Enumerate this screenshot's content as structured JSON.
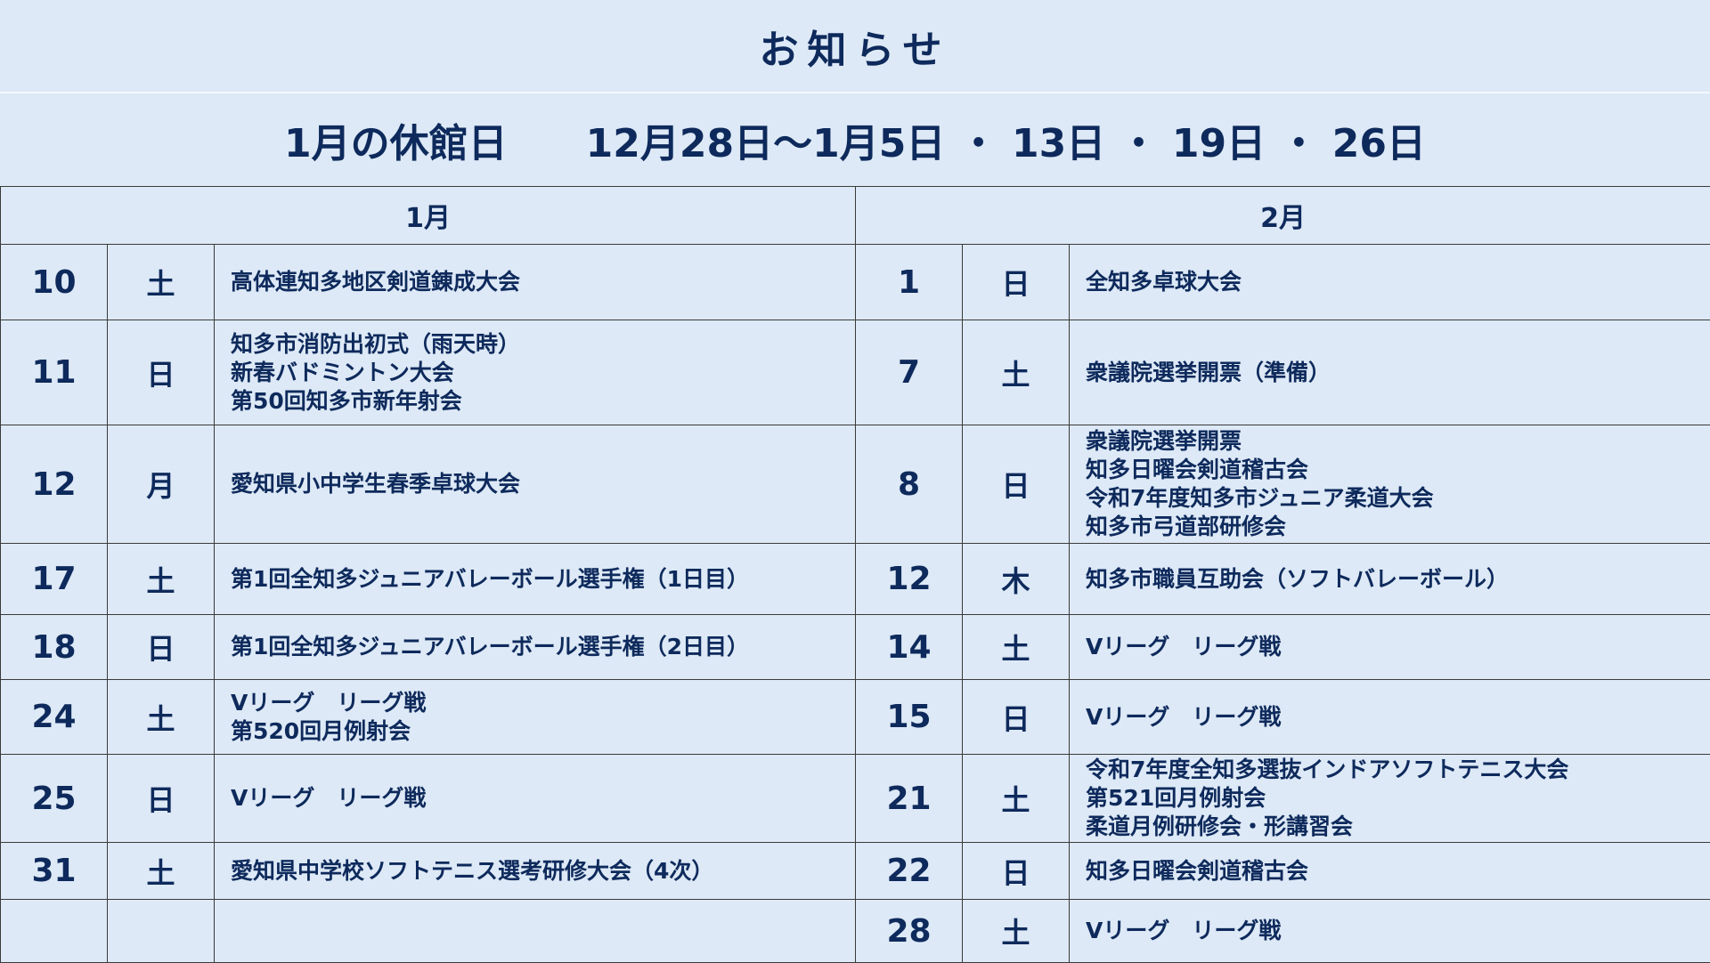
{
  "header": {
    "title": "お知らせ"
  },
  "closed_days": {
    "text": "1月の休館日　　12月28日～1月5日 ・ 13日 ・ 19日 ・ 26日"
  },
  "months": {
    "left": "1月",
    "right": "2月"
  },
  "rows": [
    {
      "left": {
        "day": "10",
        "dow": "土",
        "events": [
          "高体連知多地区剣道錬成大会"
        ]
      },
      "right": {
        "day": "1",
        "dow": "日",
        "events": [
          "全知多卓球大会"
        ]
      }
    },
    {
      "left": {
        "day": "11",
        "dow": "日",
        "events": [
          "知多市消防出初式（雨天時）",
          "新春バドミントン大会",
          "第50回知多市新年射会"
        ]
      },
      "right": {
        "day": "7",
        "dow": "土",
        "events": [
          "衆議院選挙開票（準備）"
        ]
      }
    },
    {
      "left": {
        "day": "12",
        "dow": "月",
        "events": [
          "愛知県小中学生春季卓球大会"
        ]
      },
      "right": {
        "day": "8",
        "dow": "日",
        "events": [
          "衆議院選挙開票",
          "知多日曜会剣道稽古会",
          "令和7年度知多市ジュニア柔道大会",
          "知多市弓道部研修会"
        ]
      }
    },
    {
      "left": {
        "day": "17",
        "dow": "土",
        "events": [
          "第1回全知多ジュニアバレーボール選手権（1日目）"
        ]
      },
      "right": {
        "day": "12",
        "dow": "木",
        "events": [
          "知多市職員互助会（ソフトバレーボール）"
        ]
      }
    },
    {
      "left": {
        "day": "18",
        "dow": "日",
        "events": [
          "第1回全知多ジュニアバレーボール選手権（2日目）"
        ]
      },
      "right": {
        "day": "14",
        "dow": "土",
        "events": [
          "Vリーグ　リーグ戦"
        ]
      }
    },
    {
      "left": {
        "day": "24",
        "dow": "土",
        "events": [
          "Vリーグ　リーグ戦",
          "第520回月例射会"
        ]
      },
      "right": {
        "day": "15",
        "dow": "日",
        "events": [
          "Vリーグ　リーグ戦"
        ]
      }
    },
    {
      "left": {
        "day": "25",
        "dow": "日",
        "events": [
          "Vリーグ　リーグ戦"
        ]
      },
      "right": {
        "day": "21",
        "dow": "土",
        "events": [
          "令和7年度全知多選抜インドアソフトテニス大会",
          "第521回月例射会",
          "柔道月例研修会・形講習会"
        ]
      }
    },
    {
      "left": {
        "day": "31",
        "dow": "土",
        "events": [
          "愛知県中学校ソフトテニス選考研修大会（4次）"
        ]
      },
      "right": {
        "day": "22",
        "dow": "日",
        "events": [
          "知多日曜会剣道稽古会"
        ]
      }
    },
    {
      "left": {
        "day": "",
        "dow": "",
        "events": []
      },
      "right": {
        "day": "28",
        "dow": "土",
        "events": [
          "Vリーグ　リーグ戦"
        ]
      }
    }
  ]
}
